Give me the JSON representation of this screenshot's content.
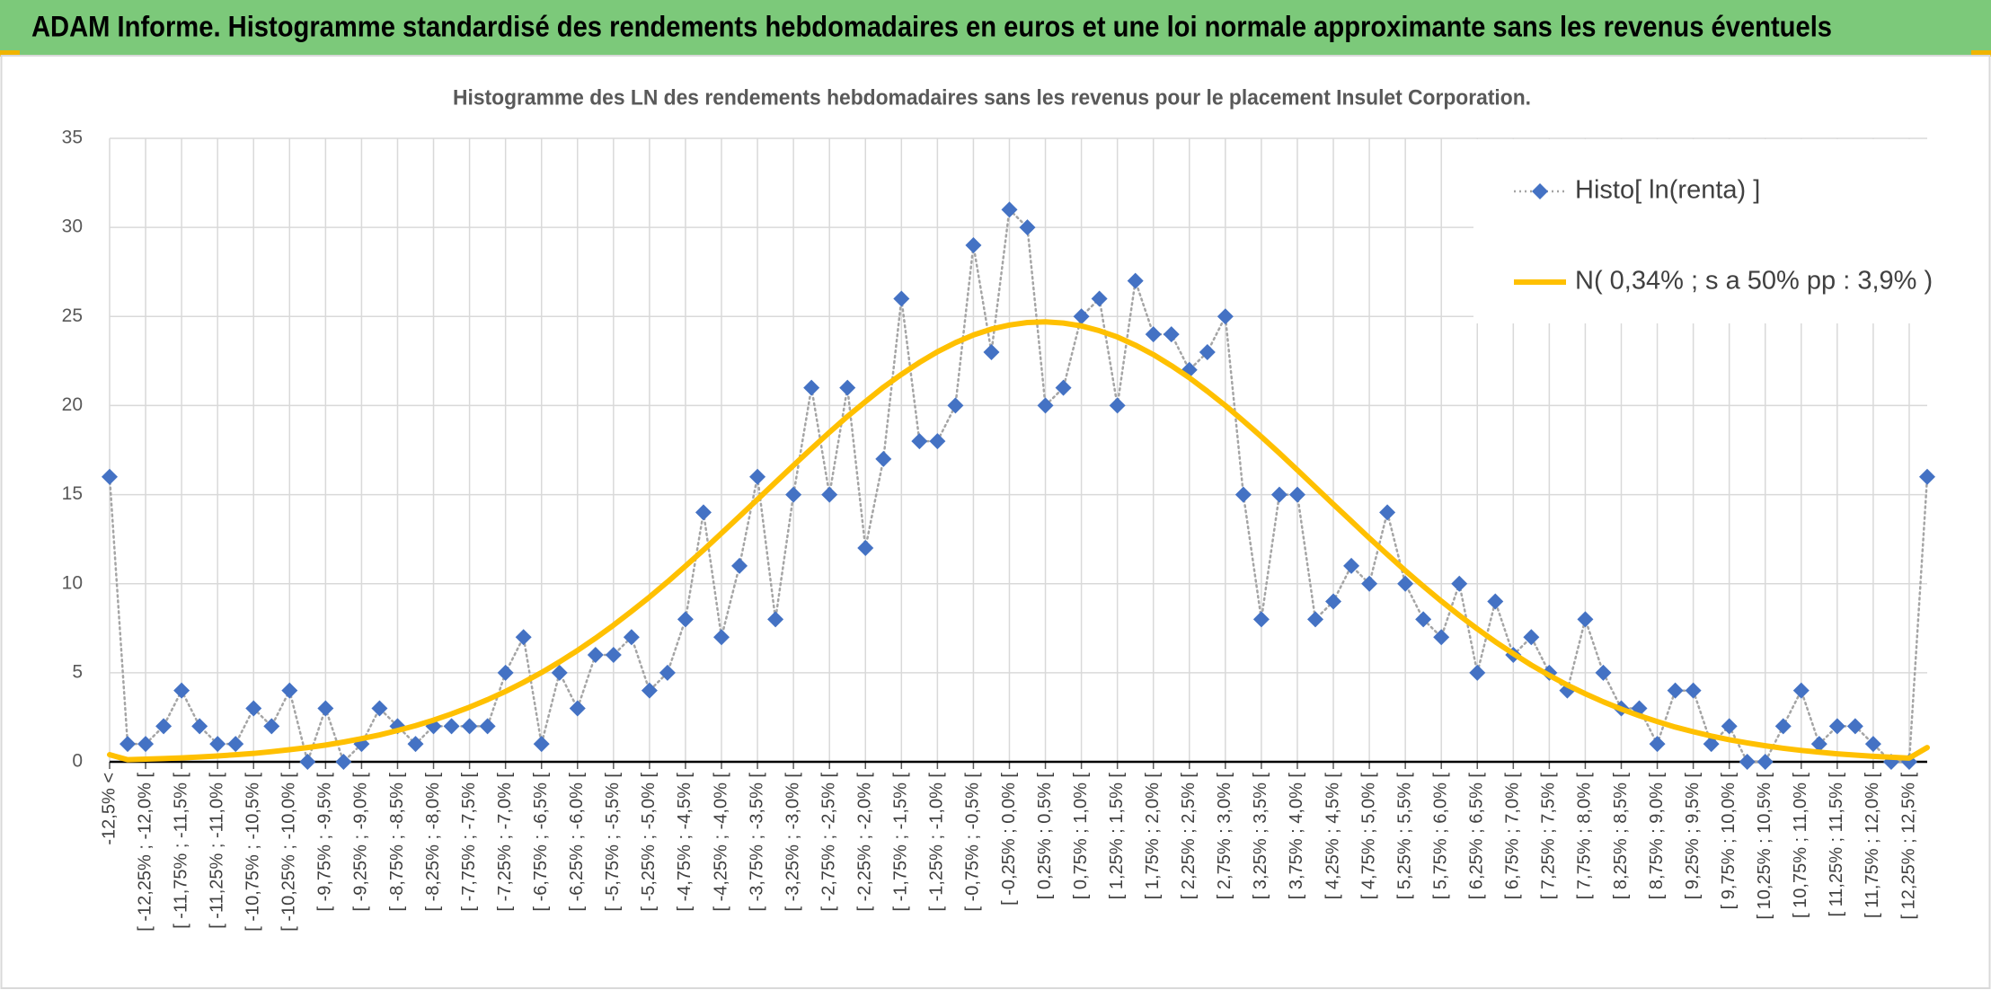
{
  "header": {
    "title": "ADAM Informe. Histogramme standardisé des rendements hebdomadaires en euros et une loi normale approximante sans les revenus éventuels"
  },
  "chart_data": {
    "type": "line",
    "title": "Histogramme des LN des rendements hebdomadaires sans les revenus pour le placement Insulet Corporation.",
    "categories": [
      "-12,5% <",
      null,
      "[ -12,25% ; -12,0% [",
      null,
      "[ -11,75% ; -11,5% [",
      null,
      "[ -11,25% ; -11,0% [",
      null,
      "[ -10,75% ; -10,5% [",
      null,
      "[ -10,25% ; -10,0% [",
      null,
      "[ -9,75% ; -9,5% [",
      null,
      "[ -9,25% ; -9,0% [",
      null,
      "[ -8,75% ; -8,5% [",
      null,
      "[ -8,25% ; -8,0% [",
      null,
      "[ -7,75% ; -7,5% [",
      null,
      "[ -7,25% ; -7,0% [",
      null,
      "[ -6,75% ; -6,5% [",
      null,
      "[ -6,25% ; -6,0% [",
      null,
      "[ -5,75% ; -5,5% [",
      null,
      "[ -5,25% ; -5,0% [",
      null,
      "[ -4,75% ; -4,5% [",
      null,
      "[ -4,25% ; -4,0% [",
      null,
      "[ -3,75% ; -3,5% [",
      null,
      "[ -3,25% ; -3,0% [",
      null,
      "[ -2,75% ; -2,5% [",
      null,
      "[ -2,25% ; -2,0% [",
      null,
      "[ -1,75% ; -1,5% [",
      null,
      "[ -1,25% ; -1,0% [",
      null,
      "[ -0,75% ; -0,5% [",
      null,
      "[ -0,25% ; 0,0% [",
      null,
      "[ 0,25% ; 0,5% [",
      null,
      "[ 0,75% ; 1,0% [",
      null,
      "[ 1,25% ; 1,5% [",
      null,
      "[ 1,75% ; 2,0% [",
      null,
      "[ 2,25% ; 2,5% [",
      null,
      "[ 2,75% ; 3,0% [",
      null,
      "[ 3,25% ; 3,5% [",
      null,
      "[ 3,75% ; 4,0% [",
      null,
      "[ 4,25% ; 4,5% [",
      null,
      "[ 4,75% ; 5,0% [",
      null,
      "[ 5,25% ; 5,5% [",
      null,
      "[ 5,75% ; 6,0% [",
      null,
      "[ 6,25% ; 6,5% [",
      null,
      "[ 6,75% ; 7,0% [",
      null,
      "[ 7,25% ; 7,5% [",
      null,
      "[ 7,75% ; 8,0% [",
      null,
      "[ 8,25% ; 8,5% [",
      null,
      "[ 8,75% ; 9,0% [",
      null,
      "[ 9,25% ; 9,5% [",
      null,
      "[ 9,75% ; 10,0% [",
      null,
      "[ 10,25% ; 10,5% [",
      null,
      "[ 10,75% ; 11,0% [",
      null,
      "[ 11,25% ; 11,5% [",
      null,
      "[ 11,75% ; 12,0% [",
      null,
      "[ 12,25% ; 12,5% [",
      null
    ],
    "series": [
      {
        "name": "Histo[ ln(renta) ]",
        "color": "#4472c4",
        "line_color": "#a5a5a5",
        "line_style": "dotted",
        "marker": "diamond",
        "values": [
          16,
          1,
          1,
          2,
          4,
          2,
          1,
          1,
          3,
          2,
          4,
          0,
          3,
          0,
          1,
          3,
          2,
          1,
          2,
          2,
          2,
          2,
          5,
          7,
          1,
          5,
          3,
          6,
          6,
          7,
          4,
          5,
          8,
          14,
          7,
          11,
          16,
          8,
          15,
          21,
          15,
          21,
          12,
          17,
          26,
          18,
          18,
          20,
          29,
          23,
          31,
          30,
          20,
          21,
          25,
          26,
          20,
          27,
          24,
          24,
          22,
          23,
          25,
          15,
          8,
          15,
          15,
          8,
          9,
          11,
          10,
          14,
          10,
          8,
          7,
          10,
          5,
          9,
          6,
          7,
          5,
          4,
          8,
          5,
          3,
          3,
          1,
          4,
          4,
          1,
          2,
          0,
          0,
          2,
          4,
          1,
          2,
          2,
          1,
          0,
          0,
          16
        ]
      },
      {
        "name": "N( 0,34% ; s a 50% pp : 3,9% )",
        "color": "#ffc000",
        "line_style": "solid",
        "marker": "none",
        "values": [
          0.4,
          0.12,
          0.15,
          0.18,
          0.22,
          0.27,
          0.33,
          0.4,
          0.47,
          0.57,
          0.68,
          0.8,
          0.94,
          1.11,
          1.3,
          1.51,
          1.76,
          2.03,
          2.34,
          2.69,
          3.07,
          3.49,
          3.95,
          4.46,
          5.01,
          5.61,
          6.25,
          6.94,
          7.67,
          8.45,
          9.25,
          10.1,
          10.99,
          11.89,
          12.83,
          13.78,
          14.73,
          15.69,
          16.64,
          17.58,
          18.5,
          19.39,
          20.22,
          21.03,
          21.75,
          22.42,
          23.02,
          23.53,
          23.96,
          24.29,
          24.52,
          24.66,
          24.7,
          24.63,
          24.47,
          24.2,
          23.85,
          23.39,
          22.86,
          22.24,
          21.56,
          20.8,
          20.0,
          19.14,
          18.25,
          17.33,
          16.38,
          15.42,
          14.46,
          13.51,
          12.56,
          11.64,
          10.73,
          9.86,
          9.02,
          8.22,
          7.46,
          6.74,
          6.07,
          5.43,
          4.85,
          4.31,
          3.82,
          3.37,
          2.96,
          2.59,
          2.26,
          1.95,
          1.69,
          1.45,
          1.24,
          1.06,
          0.9,
          0.76,
          0.64,
          0.54,
          0.45,
          0.38,
          0.31,
          0.26,
          0.21,
          0.8
        ]
      }
    ],
    "ylim": [
      0,
      35
    ],
    "yticks": [
      0,
      5,
      10,
      15,
      20,
      25,
      30,
      35
    ],
    "grid": true,
    "legend": "top-right"
  }
}
